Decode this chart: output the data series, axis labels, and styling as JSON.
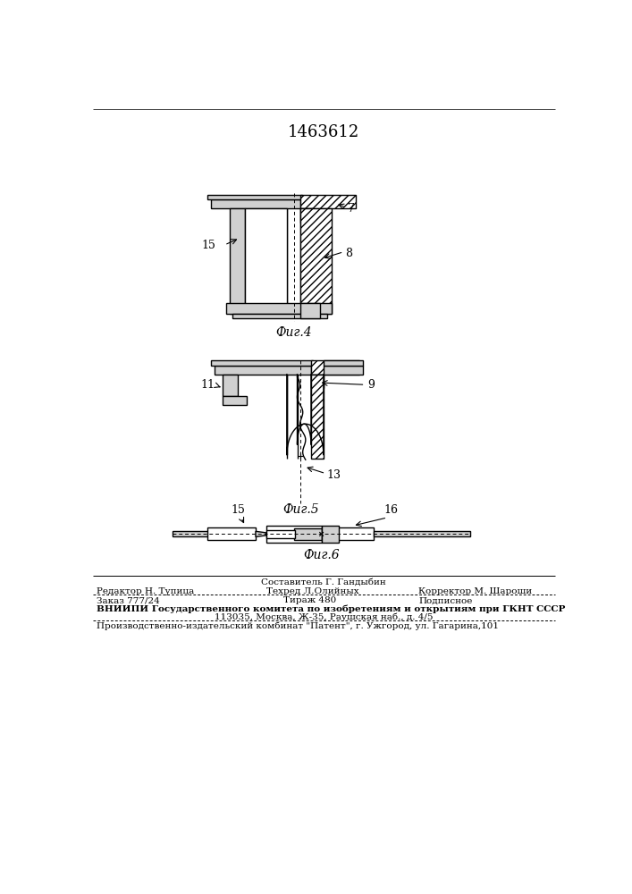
{
  "patent_number": "1463612",
  "background_color": "#ffffff",
  "line_color": "#000000",
  "fig4_label": "Фиг.4",
  "fig5_label": "Фиг.5",
  "fig6_label": "Фиг.6",
  "footer_line0_center": "Составитель Г. Гандыбин",
  "footer_line1_left": "Редактор Н. Тупица",
  "footer_line1_center": "Техред Л.Олийных",
  "footer_line1_right": "Корректор М. Шароши",
  "footer_line2_left": "Заказ 777/24",
  "footer_line2_center": "Тираж 480",
  "footer_line2_right": "Подписное",
  "footer_line3": "ВНИИПИ Государственного комитета по изобретениям и открытиям при ГКНТ СССР",
  "footer_line4": "113035, Москва, Ж-35, Раушская наб., д. 4/5",
  "footer_line5": "Производственно-издательский комбинат \"Патент\", г. Ужгород, ул. Гагарина,101"
}
